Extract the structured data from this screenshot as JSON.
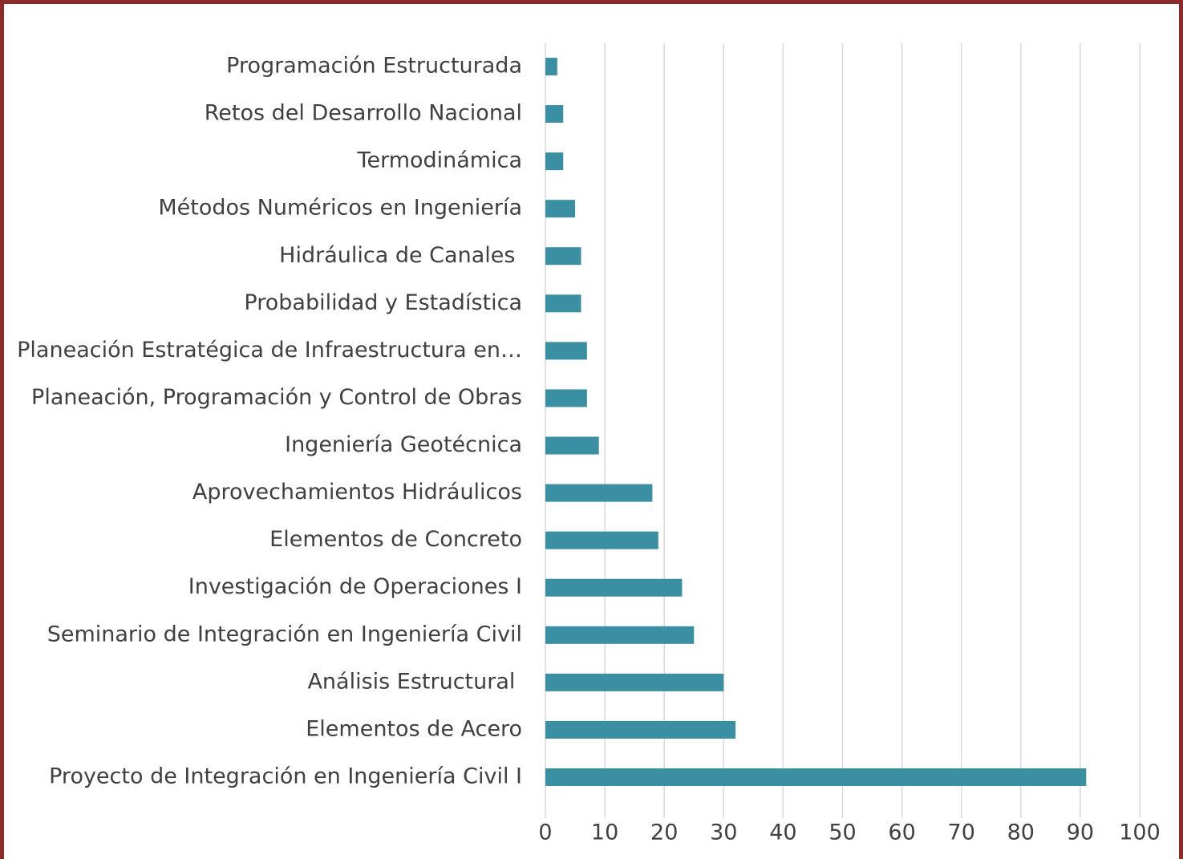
{
  "chart_data": {
    "type": "barh",
    "color": "#3a8fa3",
    "grid": true,
    "categories": [
      "Programación Estructurada",
      "Retos del Desarrollo Nacional",
      "Termodinámica",
      "Métodos Numéricos en Ingeniería",
      "Hidráulica de Canales ",
      "Probabilidad y Estadística",
      "Planeación Estratégica de Infraestructura en…",
      "Planeación, Programación y Control de Obras",
      "Ingeniería Geotécnica",
      "Aprovechamientos Hidráulicos",
      "Elementos de Concreto",
      "Investigación de Operaciones I",
      "Seminario de Integración en Ingeniería Civil",
      "Análisis Estructural ",
      "Elementos de Acero",
      "Proyecto de Integración en Ingeniería Civil I"
    ],
    "values": [
      2,
      3,
      3,
      5,
      6,
      6,
      7,
      7,
      9,
      18,
      19,
      23,
      25,
      30,
      32,
      91
    ],
    "xlim": [
      0,
      100
    ],
    "xticks": [
      0,
      10,
      20,
      30,
      40,
      50,
      60,
      70,
      80,
      90,
      100
    ]
  }
}
